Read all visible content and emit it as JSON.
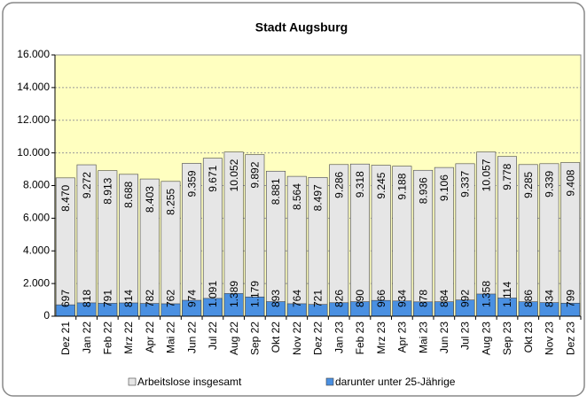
{
  "chart_data": {
    "type": "bar",
    "title": "Stadt Augsburg",
    "categories": [
      "Dez 21",
      "Jan 22",
      "Feb 22",
      "Mrz 22",
      "Apr 22",
      "Mai 22",
      "Jun 22",
      "Jul 22",
      "Aug 22",
      "Sep 22",
      "Okt 22",
      "Nov 22",
      "Dez 22",
      "Jan 23",
      "Feb 23",
      "Mrz 23",
      "Apr 23",
      "Mai 23",
      "Jun 23",
      "Jul 23",
      "Aug 23",
      "Sep 23",
      "Okt 23",
      "Nov 23",
      "Dez 23"
    ],
    "series": [
      {
        "name": "Arbeitslose insgesamt",
        "color": "#e6e6e6",
        "values": [
          8470,
          9272,
          8913,
          8688,
          8403,
          8255,
          9359,
          9671,
          10052,
          9892,
          8881,
          8564,
          8497,
          9286,
          9318,
          9245,
          9188,
          8936,
          9106,
          9337,
          10057,
          9778,
          9285,
          9339,
          9408
        ],
        "value_labels": [
          "8.470",
          "9.272",
          "8.913",
          "8.688",
          "8.403",
          "8.255",
          "9.359",
          "9.671",
          "10.052",
          "9.892",
          "8.881",
          "8.564",
          "8.497",
          "9.286",
          "9.318",
          "9.245",
          "9.188",
          "8.936",
          "9.106",
          "9.337",
          "10.057",
          "9.778",
          "9.285",
          "9.339",
          "9.408"
        ]
      },
      {
        "name": "darunter unter 25-Jährige",
        "color": "#4a90e2",
        "values": [
          697,
          818,
          791,
          814,
          782,
          762,
          974,
          1091,
          1389,
          1179,
          893,
          764,
          721,
          826,
          890,
          966,
          934,
          878,
          884,
          992,
          1358,
          1114,
          886,
          834,
          799
        ],
        "value_labels": [
          "697",
          "818",
          "791",
          "814",
          "782",
          "762",
          "974",
          "1.091",
          "1.389",
          "1.179",
          "893",
          "764",
          "721",
          "826",
          "890",
          "966",
          "934",
          "878",
          "884",
          "992",
          "1.358",
          "1.114",
          "886",
          "834",
          "799"
        ]
      }
    ],
    "ylim": [
      0,
      16000
    ],
    "yticks": [
      0,
      {
        "value": 2000,
        "label": "2.000"
      },
      {
        "value": 4000,
        "label": "4.000"
      },
      {
        "value": 6000,
        "label": "6.000"
      },
      {
        "value": 8000,
        "label": "8.000"
      },
      {
        "value": 10000,
        "label": "10.000"
      },
      {
        "value": 12000,
        "label": "12.000"
      },
      {
        "value": 14000,
        "label": "14.000"
      },
      {
        "value": 16000,
        "label": "16.000"
      }
    ],
    "grid": true,
    "legend": "bottom"
  }
}
